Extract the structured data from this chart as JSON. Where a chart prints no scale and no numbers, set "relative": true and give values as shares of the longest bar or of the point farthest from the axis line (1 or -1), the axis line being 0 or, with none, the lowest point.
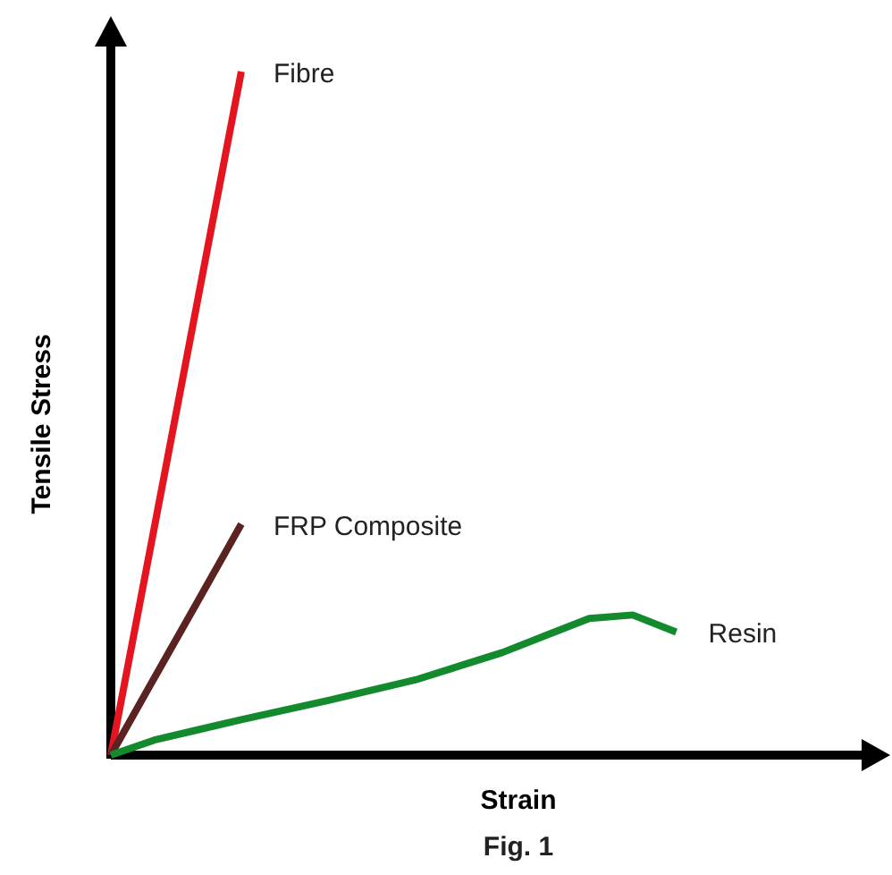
{
  "chart_data": {
    "type": "line",
    "relative": true,
    "xlabel": "Strain",
    "ylabel": "Tensile Stress",
    "annotations": [
      "Fig. 1"
    ],
    "categories": [
      null,
      null,
      null,
      null,
      null,
      null,
      null,
      null,
      null,
      null,
      null,
      null,
      null,
      null,
      null,
      null,
      null,
      null
    ],
    "tick_labels": false,
    "grid": false,
    "legend": false,
    "marker": "none",
    "line_style": "solid",
    "series": [
      {
        "name": "Fibre",
        "color": "#e4151f",
        "values": [
          0,
          0.333,
          0.667,
          1,
          null,
          null,
          null,
          null,
          null,
          null,
          null,
          null,
          null,
          null,
          null,
          null,
          null,
          null
        ]
      },
      {
        "name": "FRP Composite",
        "color": "#5b2222",
        "values": [
          0,
          0.113,
          0.225,
          0.338,
          null,
          null,
          null,
          null,
          null,
          null,
          null,
          null,
          null,
          null,
          null,
          null,
          null,
          null
        ]
      },
      {
        "name": "Resin",
        "color": "#138a2e",
        "values": [
          0,
          0.022,
          0.037,
          0.052,
          0.066,
          0.08,
          0.095,
          0.11,
          0.13,
          0.15,
          0.175,
          0.2,
          0.205,
          0.18,
          null,
          null,
          null,
          null
        ]
      }
    ]
  }
}
